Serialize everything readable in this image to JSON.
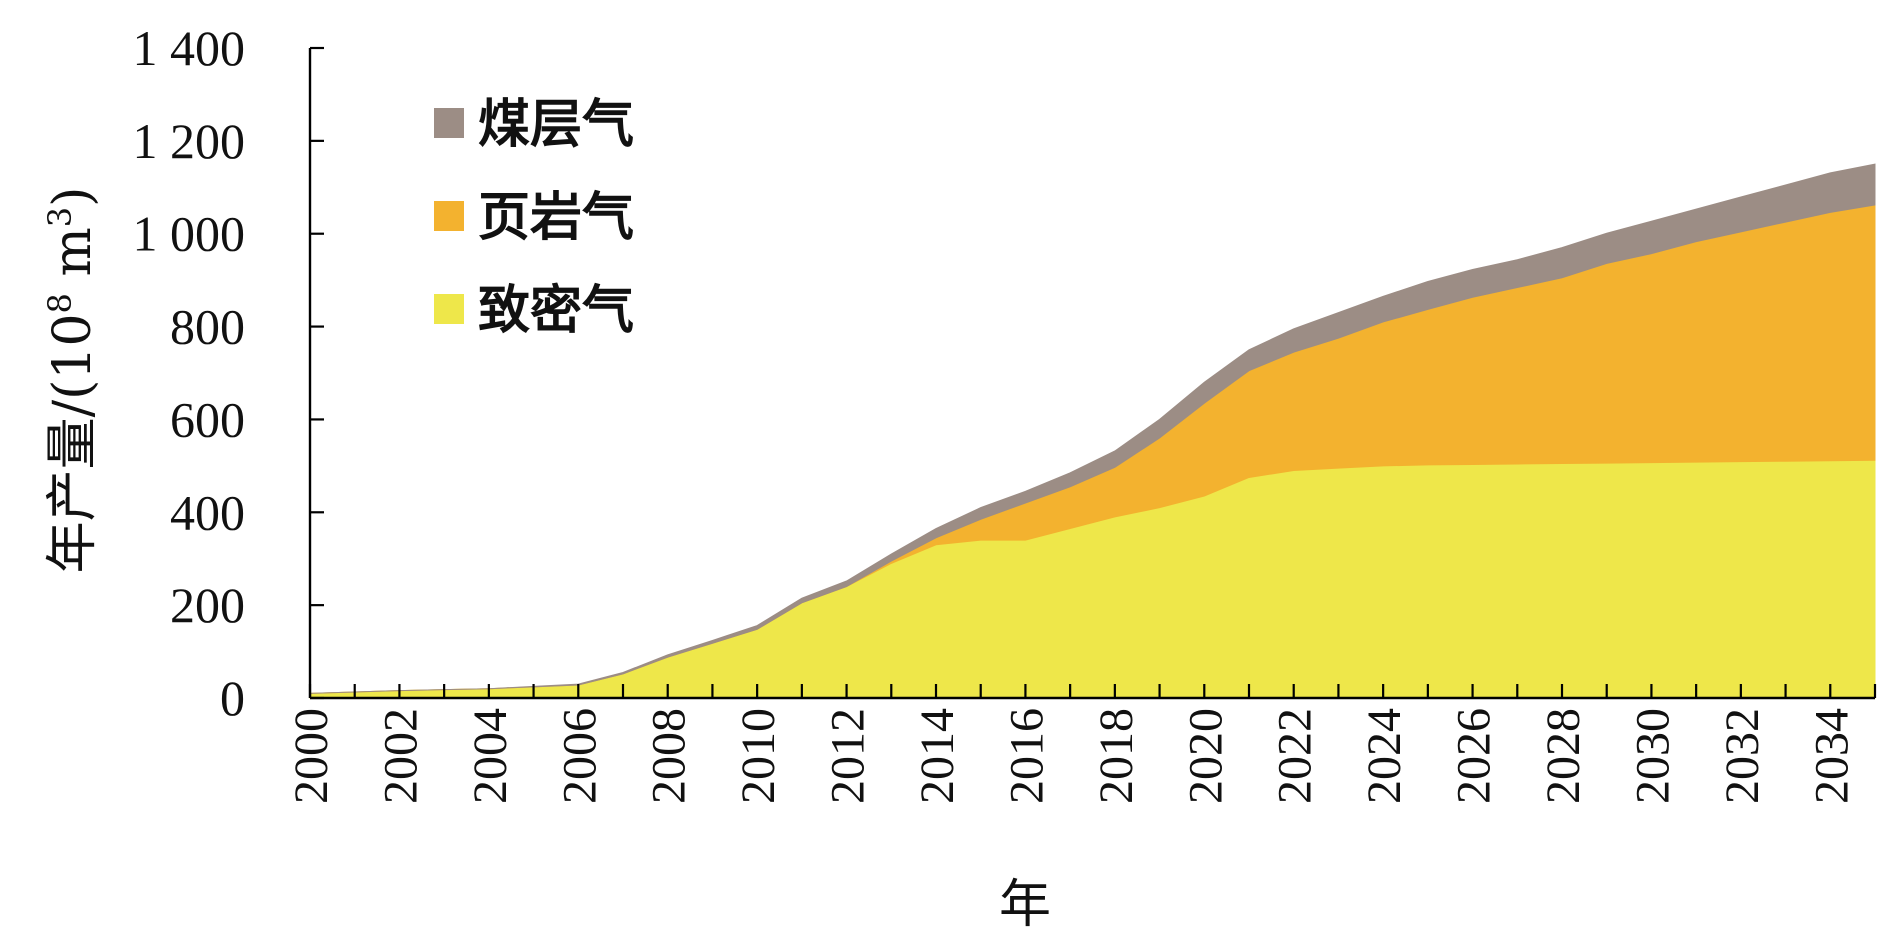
{
  "chart_data": {
    "type": "area",
    "stacked": true,
    "title": "",
    "xlabel": "年",
    "ylabel": "年产量/(10⁸ m³)",
    "ylabel_parts": {
      "main": "年产量/(10",
      "exp1": "8",
      "mid": " m",
      "exp2": "3",
      "end": ")"
    },
    "xlim": [
      2000,
      2035
    ],
    "ylim": [
      0,
      1400
    ],
    "y_ticks": [
      0,
      200,
      400,
      600,
      800,
      1000,
      1200,
      1400
    ],
    "y_tick_labels": [
      "0",
      "200",
      "400",
      "600",
      "800",
      "1 000",
      "1 200",
      "1 400"
    ],
    "x_tick_labels": [
      "2000",
      "2002",
      "2004",
      "2006",
      "2008",
      "2010",
      "2012",
      "2014",
      "2016",
      "2018",
      "2020",
      "2022",
      "2024",
      "2026",
      "2028",
      "2030",
      "2032",
      "2034"
    ],
    "legend_position": "top-left",
    "grid": false,
    "x": [
      2000,
      2001,
      2002,
      2003,
      2004,
      2005,
      2006,
      2007,
      2008,
      2009,
      2010,
      2011,
      2012,
      2013,
      2014,
      2015,
      2016,
      2017,
      2018,
      2019,
      2020,
      2021,
      2022,
      2023,
      2024,
      2025,
      2026,
      2027,
      2028,
      2029,
      2030,
      2031,
      2032,
      2033,
      2034,
      2035
    ],
    "series": [
      {
        "name": "致密气",
        "color": "#EEE74A",
        "values": [
          10,
          13,
          16,
          18,
          20,
          24,
          28,
          52,
          88,
          118,
          148,
          205,
          240,
          290,
          330,
          340,
          340,
          365,
          390,
          410,
          435,
          475,
          490,
          495,
          500,
          502,
          503,
          504,
          505,
          506,
          507,
          508,
          509,
          510,
          511,
          512
        ]
      },
      {
        "name": "页岩气",
        "color": "#F3B22F",
        "values": [
          0,
          0,
          0,
          0,
          0,
          0,
          0,
          0,
          0,
          0,
          0,
          0,
          0,
          5,
          15,
          45,
          80,
          90,
          107,
          150,
          200,
          230,
          255,
          280,
          310,
          335,
          360,
          380,
          400,
          430,
          450,
          475,
          495,
          515,
          535,
          550
        ]
      },
      {
        "name": "煤层气",
        "color": "#9C8D85",
        "values": [
          0,
          0,
          0,
          0,
          0,
          1,
          2,
          3,
          5,
          6,
          8,
          10,
          12,
          15,
          20,
          25,
          25,
          30,
          35,
          40,
          45,
          45,
          50,
          55,
          55,
          60,
          60,
          60,
          65,
          65,
          70,
          70,
          75,
          80,
          85,
          88
        ]
      }
    ]
  }
}
